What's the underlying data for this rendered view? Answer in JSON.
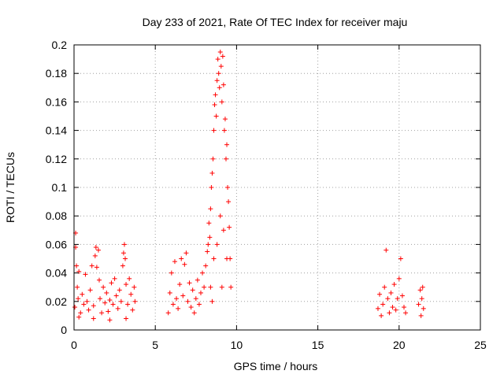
{
  "chart_data": {
    "type": "scatter",
    "title": "Day 233 of 2021, Rate Of TEC Index for receiver maju",
    "xlabel": "GPS time / hours",
    "ylabel": "ROTI / TECUs",
    "xlim": [
      0,
      25
    ],
    "ylim": [
      0,
      0.2
    ],
    "xticks": [
      0,
      5,
      10,
      15,
      20,
      25
    ],
    "xtick_labels": [
      "0",
      "5",
      "10",
      "15",
      "20",
      "25"
    ],
    "yticks": [
      0,
      0.02,
      0.04,
      0.06,
      0.08,
      0.1,
      0.12,
      0.14,
      0.16,
      0.18,
      0.2
    ],
    "ytick_labels": [
      "0",
      "0.02",
      "0.04",
      "0.06",
      "0.08",
      "0.1",
      "0.12",
      "0.14",
      "0.16",
      "0.18",
      "0.2"
    ],
    "grid": true,
    "marker": "+",
    "marker_color": "#ff0000",
    "points": [
      [
        0.05,
        0.016
      ],
      [
        0.1,
        0.068
      ],
      [
        0.1,
        0.058
      ],
      [
        0.15,
        0.045
      ],
      [
        0.2,
        0.03
      ],
      [
        0.25,
        0.022
      ],
      [
        0.3,
        0.041
      ],
      [
        0.4,
        0.012
      ],
      [
        0.5,
        0.025
      ],
      [
        0.6,
        0.018
      ],
      [
        0.7,
        0.039
      ],
      [
        0.8,
        0.02
      ],
      [
        0.9,
        0.014
      ],
      [
        1.0,
        0.028
      ],
      [
        1.1,
        0.045
      ],
      [
        1.2,
        0.017
      ],
      [
        1.3,
        0.052
      ],
      [
        1.35,
        0.058
      ],
      [
        1.4,
        0.044
      ],
      [
        1.5,
        0.056
      ],
      [
        1.55,
        0.035
      ],
      [
        1.6,
        0.022
      ],
      [
        1.7,
        0.012
      ],
      [
        1.8,
        0.03
      ],
      [
        1.9,
        0.019
      ],
      [
        2.0,
        0.026
      ],
      [
        2.1,
        0.013
      ],
      [
        2.2,
        0.021
      ],
      [
        2.3,
        0.033
      ],
      [
        2.4,
        0.018
      ],
      [
        2.5,
        0.036
      ],
      [
        2.6,
        0.024
      ],
      [
        2.7,
        0.015
      ],
      [
        2.8,
        0.028
      ],
      [
        2.9,
        0.02
      ],
      [
        3.0,
        0.045
      ],
      [
        3.05,
        0.054
      ],
      [
        3.1,
        0.06
      ],
      [
        3.15,
        0.05
      ],
      [
        3.2,
        0.032
      ],
      [
        3.3,
        0.018
      ],
      [
        3.4,
        0.036
      ],
      [
        3.5,
        0.025
      ],
      [
        3.6,
        0.014
      ],
      [
        3.7,
        0.03
      ],
      [
        3.75,
        0.02
      ],
      [
        0.3,
        0.009
      ],
      [
        1.2,
        0.008
      ],
      [
        2.2,
        0.007
      ],
      [
        3.2,
        0.008
      ],
      [
        5.8,
        0.012
      ],
      [
        5.9,
        0.026
      ],
      [
        6.0,
        0.04
      ],
      [
        6.1,
        0.018
      ],
      [
        6.2,
        0.048
      ],
      [
        6.3,
        0.022
      ],
      [
        6.4,
        0.015
      ],
      [
        6.5,
        0.032
      ],
      [
        6.6,
        0.05
      ],
      [
        6.7,
        0.024
      ],
      [
        6.8,
        0.046
      ],
      [
        6.9,
        0.054
      ],
      [
        7.0,
        0.02
      ],
      [
        7.1,
        0.033
      ],
      [
        7.2,
        0.016
      ],
      [
        7.3,
        0.028
      ],
      [
        7.4,
        0.012
      ],
      [
        7.5,
        0.022
      ],
      [
        7.6,
        0.035
      ],
      [
        7.7,
        0.018
      ],
      [
        7.8,
        0.026
      ],
      [
        7.9,
        0.04
      ],
      [
        8.0,
        0.03
      ],
      [
        8.1,
        0.045
      ],
      [
        8.2,
        0.055
      ],
      [
        8.25,
        0.06
      ],
      [
        8.3,
        0.075
      ],
      [
        8.35,
        0.065
      ],
      [
        8.4,
        0.085
      ],
      [
        8.45,
        0.1
      ],
      [
        8.5,
        0.11
      ],
      [
        8.55,
        0.12
      ],
      [
        8.6,
        0.14
      ],
      [
        8.65,
        0.158
      ],
      [
        8.7,
        0.165
      ],
      [
        8.75,
        0.15
      ],
      [
        8.8,
        0.175
      ],
      [
        8.85,
        0.19
      ],
      [
        8.9,
        0.18
      ],
      [
        8.95,
        0.17
      ],
      [
        9.0,
        0.195
      ],
      [
        9.05,
        0.185
      ],
      [
        9.1,
        0.16
      ],
      [
        9.15,
        0.192
      ],
      [
        9.2,
        0.172
      ],
      [
        9.25,
        0.14
      ],
      [
        9.3,
        0.148
      ],
      [
        9.35,
        0.12
      ],
      [
        9.4,
        0.13
      ],
      [
        9.45,
        0.1
      ],
      [
        9.5,
        0.09
      ],
      [
        9.55,
        0.072
      ],
      [
        9.6,
        0.05
      ],
      [
        9.65,
        0.03
      ],
      [
        8.4,
        0.03
      ],
      [
        8.6,
        0.05
      ],
      [
        8.8,
        0.06
      ],
      [
        9.0,
        0.08
      ],
      [
        9.2,
        0.07
      ],
      [
        9.4,
        0.05
      ],
      [
        8.5,
        0.02
      ],
      [
        9.1,
        0.03
      ],
      [
        18.7,
        0.015
      ],
      [
        18.8,
        0.025
      ],
      [
        18.9,
        0.01
      ],
      [
        19.0,
        0.018
      ],
      [
        19.1,
        0.03
      ],
      [
        19.2,
        0.056
      ],
      [
        19.3,
        0.022
      ],
      [
        19.4,
        0.012
      ],
      [
        19.5,
        0.026
      ],
      [
        19.6,
        0.016
      ],
      [
        19.7,
        0.032
      ],
      [
        19.8,
        0.014
      ],
      [
        19.9,
        0.022
      ],
      [
        20.0,
        0.036
      ],
      [
        20.1,
        0.05
      ],
      [
        20.2,
        0.024
      ],
      [
        20.3,
        0.016
      ],
      [
        20.4,
        0.012
      ],
      [
        21.2,
        0.018
      ],
      [
        21.3,
        0.028
      ],
      [
        21.35,
        0.01
      ],
      [
        21.4,
        0.022
      ],
      [
        21.45,
        0.03
      ],
      [
        21.5,
        0.015
      ]
    ]
  }
}
